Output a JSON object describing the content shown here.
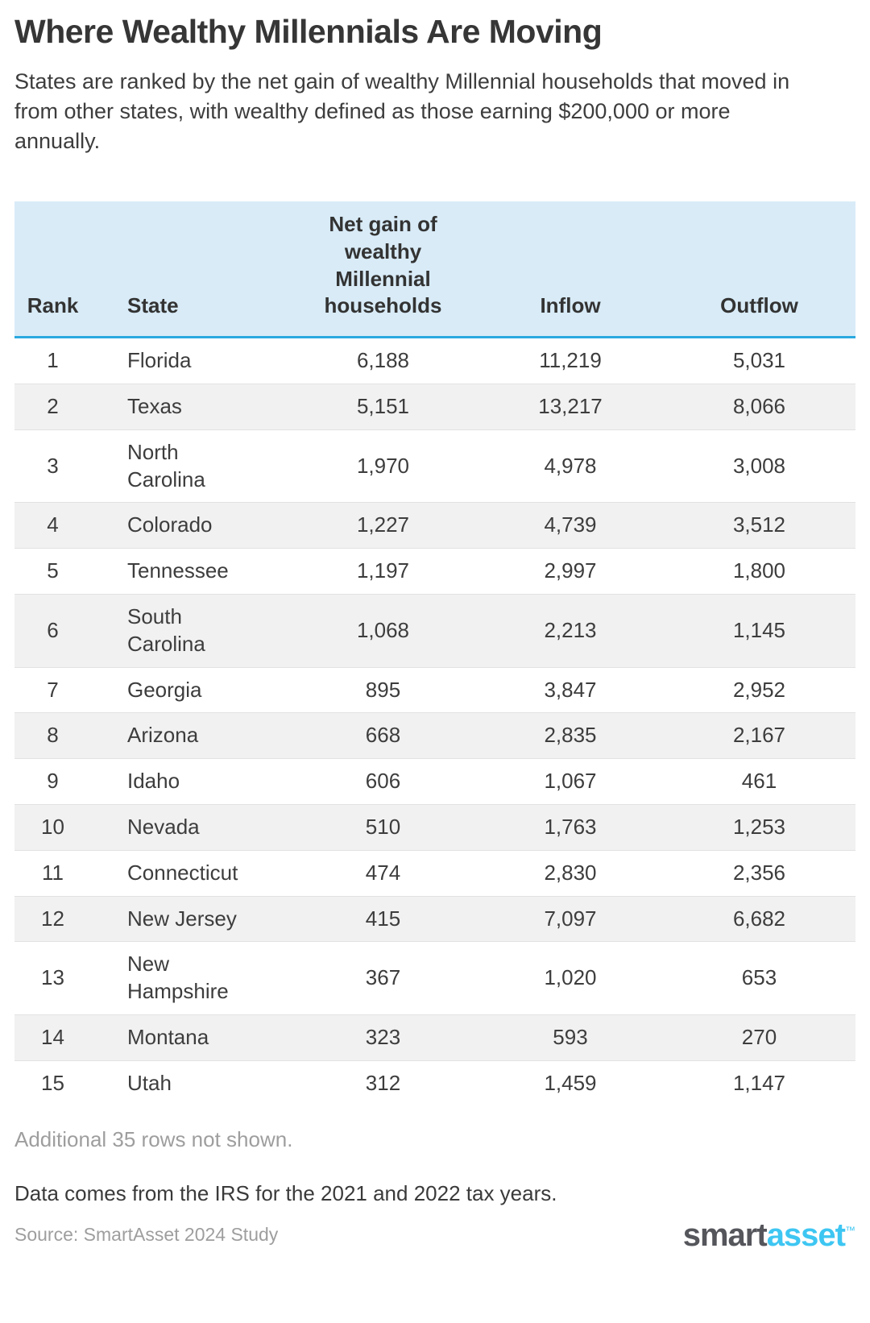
{
  "header": {
    "title": "Where Wealthy Millennials Are Moving",
    "subtitle": "States are ranked by the net gain of wealthy Millennial households that moved in from other states, with wealthy defined as those earning $200,000 or more annually."
  },
  "chart_data": {
    "type": "table",
    "title": "Where Wealthy Millennials Are Moving",
    "columns": [
      "Rank",
      "State",
      "Net gain of wealthy Millennial households",
      "Inflow",
      "Outflow"
    ],
    "rows": [
      {
        "rank": "1",
        "state": "Florida",
        "net_gain": "6,188",
        "inflow": "11,219",
        "outflow": "5,031"
      },
      {
        "rank": "2",
        "state": "Texas",
        "net_gain": "5,151",
        "inflow": "13,217",
        "outflow": "8,066"
      },
      {
        "rank": "3",
        "state": "North Carolina",
        "net_gain": "1,970",
        "inflow": "4,978",
        "outflow": "3,008"
      },
      {
        "rank": "4",
        "state": "Colorado",
        "net_gain": "1,227",
        "inflow": "4,739",
        "outflow": "3,512"
      },
      {
        "rank": "5",
        "state": "Tennessee",
        "net_gain": "1,197",
        "inflow": "2,997",
        "outflow": "1,800"
      },
      {
        "rank": "6",
        "state": "South Carolina",
        "net_gain": "1,068",
        "inflow": "2,213",
        "outflow": "1,145"
      },
      {
        "rank": "7",
        "state": "Georgia",
        "net_gain": "895",
        "inflow": "3,847",
        "outflow": "2,952"
      },
      {
        "rank": "8",
        "state": "Arizona",
        "net_gain": "668",
        "inflow": "2,835",
        "outflow": "2,167"
      },
      {
        "rank": "9",
        "state": "Idaho",
        "net_gain": "606",
        "inflow": "1,067",
        "outflow": "461"
      },
      {
        "rank": "10",
        "state": "Nevada",
        "net_gain": "510",
        "inflow": "1,763",
        "outflow": "1,253"
      },
      {
        "rank": "11",
        "state": "Connecticut",
        "net_gain": "474",
        "inflow": "2,830",
        "outflow": "2,356"
      },
      {
        "rank": "12",
        "state": "New Jersey",
        "net_gain": "415",
        "inflow": "7,097",
        "outflow": "6,682"
      },
      {
        "rank": "13",
        "state": "New Hampshire",
        "net_gain": "367",
        "inflow": "1,020",
        "outflow": "653"
      },
      {
        "rank": "14",
        "state": "Montana",
        "net_gain": "323",
        "inflow": "593",
        "outflow": "270"
      },
      {
        "rank": "15",
        "state": "Utah",
        "net_gain": "312",
        "inflow": "1,459",
        "outflow": "1,147"
      }
    ]
  },
  "footer": {
    "additional_rows_note": "Additional 35 rows not shown.",
    "data_note": "Data comes from the IRS for the 2021 and 2022 tax years.",
    "source": "Source: SmartAsset 2024 Study",
    "logo_smart": "smart",
    "logo_asset": "asset",
    "logo_tm": "™"
  },
  "colors": {
    "table_header_bg": "#d8ebf7",
    "table_header_border": "#2aa9e0",
    "alt_row_bg": "#f1f1f1",
    "text": "#3d3d3d",
    "muted_text": "#9e9e9e",
    "logo_smart": "#55565c",
    "logo_asset": "#3ec6f2"
  }
}
